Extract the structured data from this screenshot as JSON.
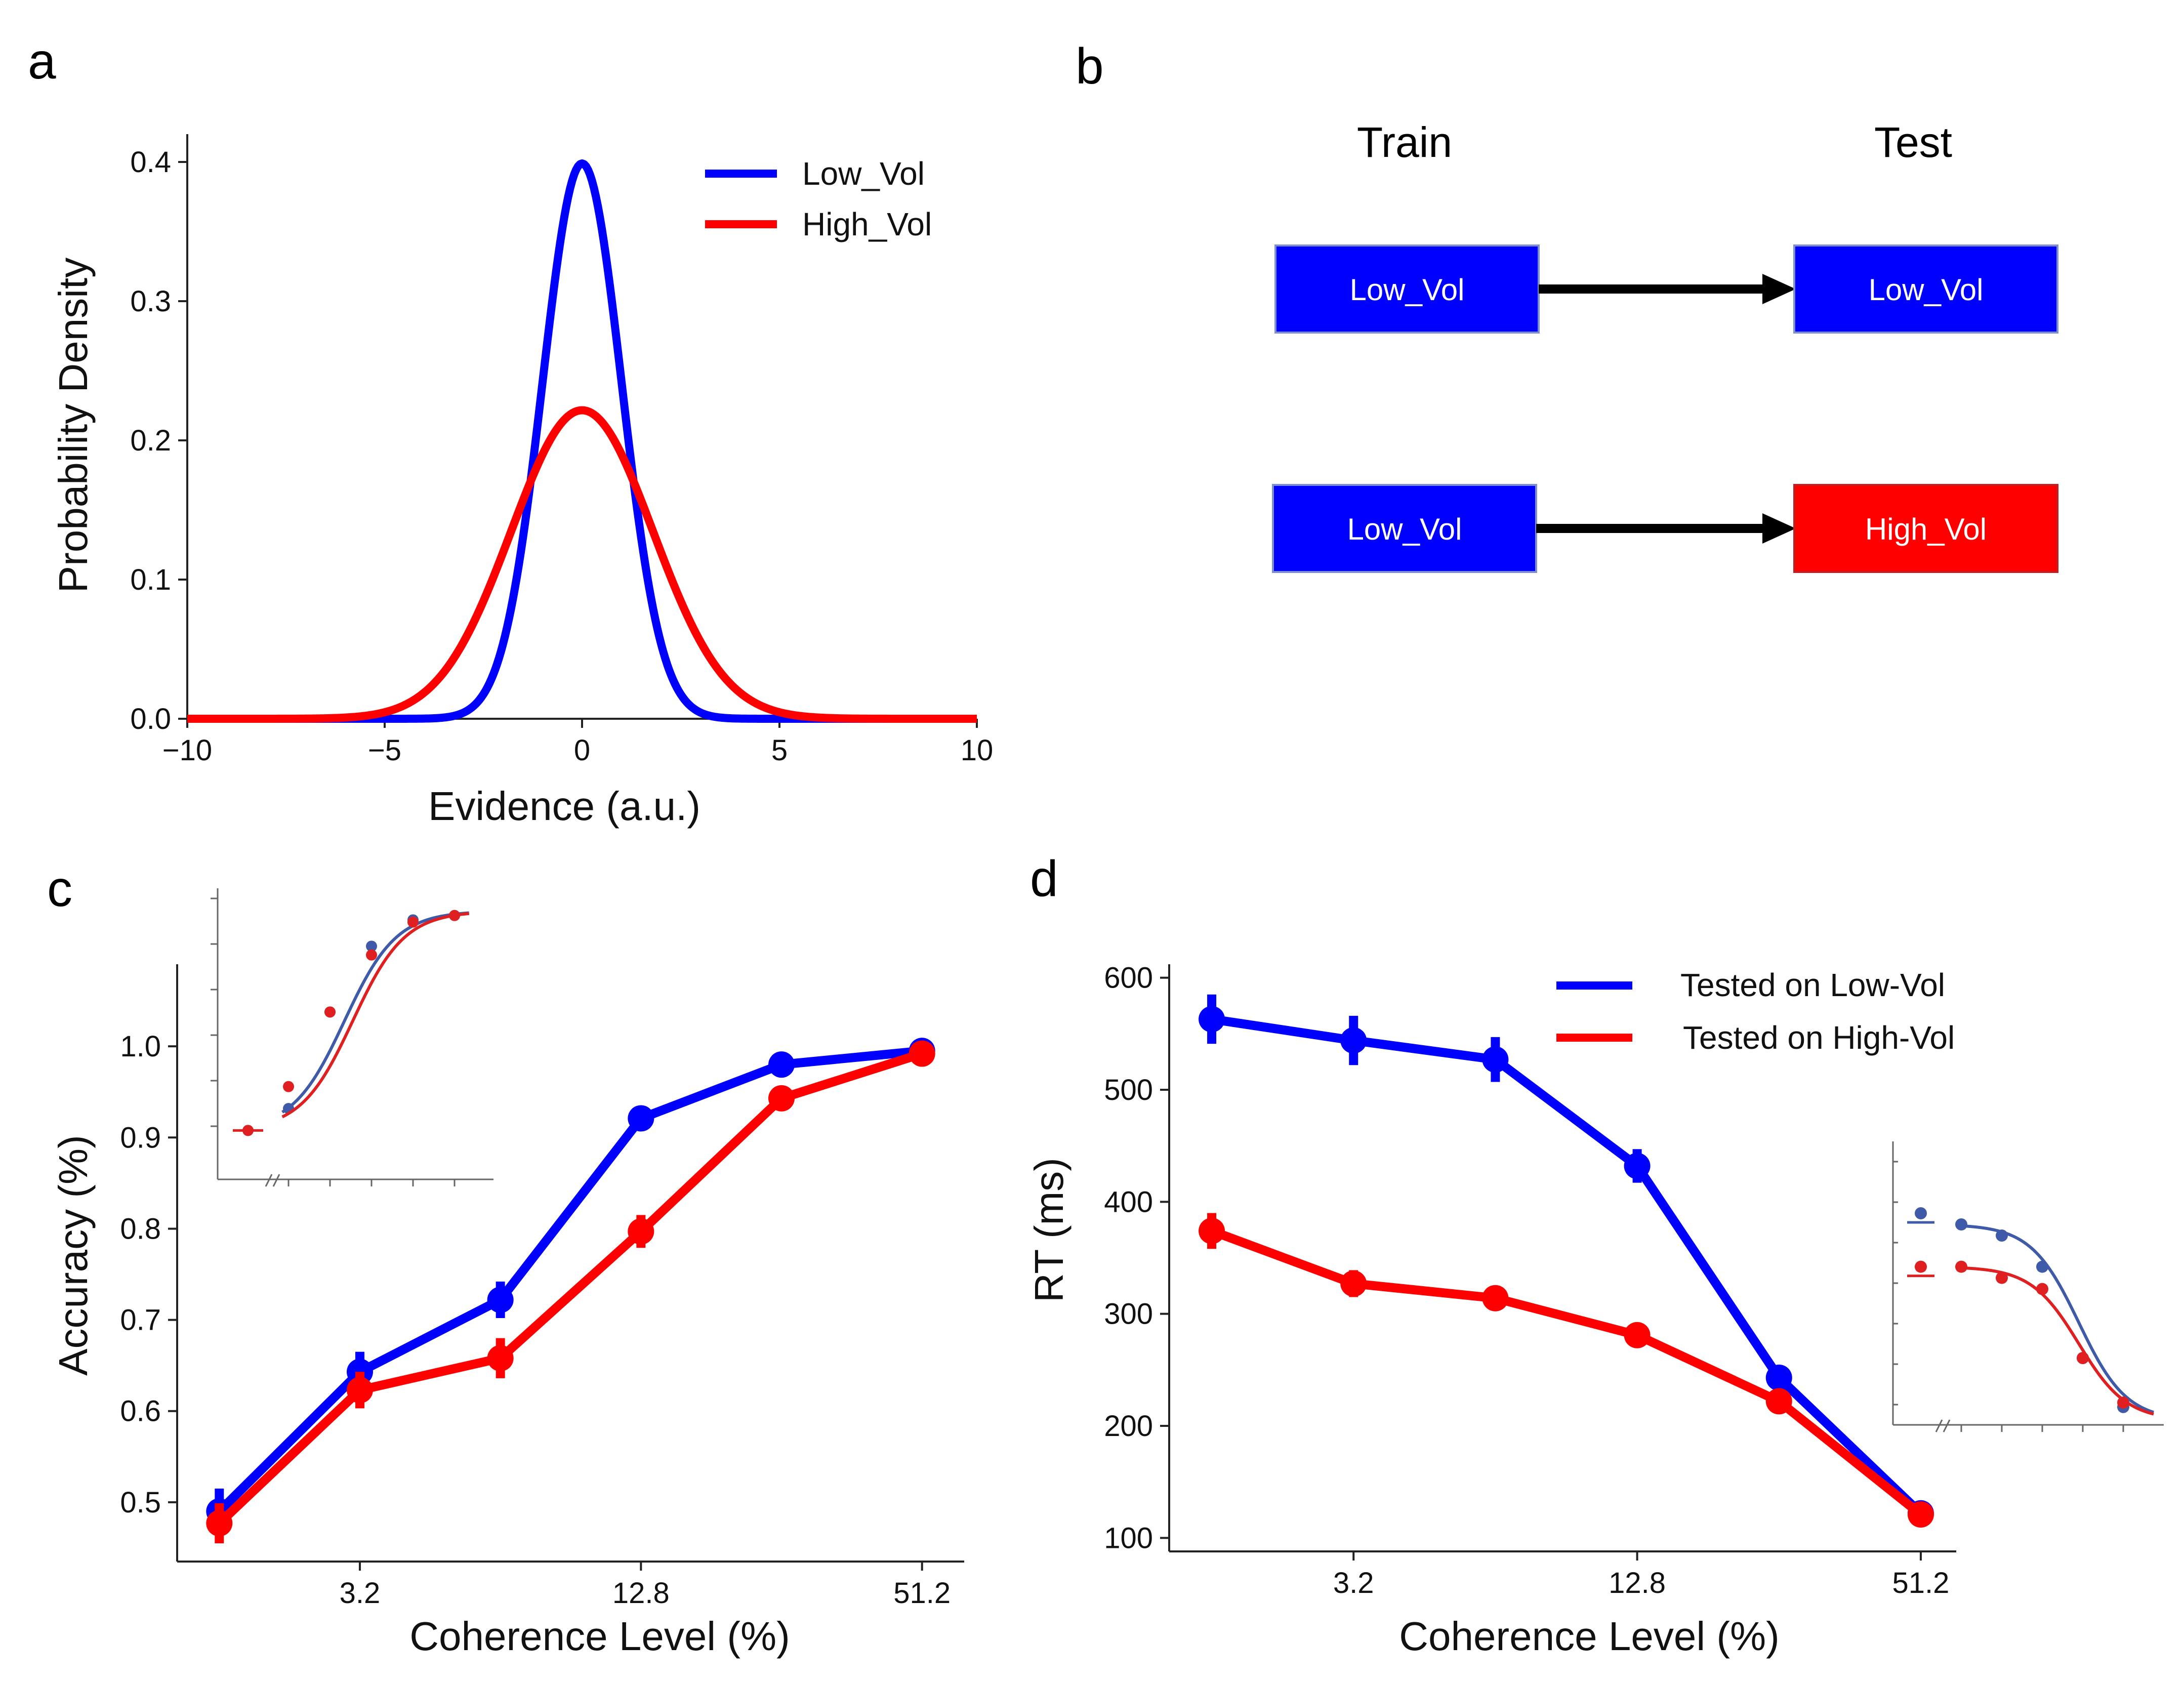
{
  "panels": {
    "a": {
      "letter": "a",
      "chart_data": {
        "type": "line",
        "title": "",
        "xlabel": "Evidence (a.u.)",
        "ylabel": "Probability Density",
        "xlim": [
          -10,
          10
        ],
        "ylim": [
          0,
          0.42
        ],
        "xticks": [
          -10,
          -5,
          0,
          5,
          10
        ],
        "xtick_labels": [
          "−10",
          "−5",
          "0",
          "5",
          "10"
        ],
        "yticks": [
          0.0,
          0.1,
          0.2,
          0.3,
          0.4
        ],
        "ytick_labels": [
          "0.0",
          "0.1",
          "0.2",
          "0.3",
          "0.4"
        ],
        "legend_position": "top-right",
        "series": [
          {
            "name": "Low_Vol",
            "color": "#0000ff",
            "distribution": "normal",
            "mean": 0,
            "sd": 1.0
          },
          {
            "name": "High_Vol",
            "color": "#ff0000",
            "distribution": "normal",
            "mean": 0,
            "sd": 1.8
          }
        ]
      }
    },
    "b": {
      "letter": "b",
      "headers": {
        "train": "Train",
        "test": "Test"
      },
      "rows": [
        {
          "train_label": "Low_Vol",
          "train_color": "#0000ff",
          "test_label": "Low_Vol",
          "test_color": "#0000ff"
        },
        {
          "train_label": "Low_Vol",
          "train_color": "#0000ff",
          "test_label": "High_Vol",
          "test_color": "#ff0000"
        }
      ]
    },
    "c": {
      "letter": "c",
      "chart_data": {
        "type": "line",
        "xlabel": "Coherence Level (%)",
        "ylabel": "Accuracy (%)",
        "x": [
          1,
          2,
          3,
          4,
          5,
          6
        ],
        "xlim": [
          0.7,
          6.3
        ],
        "ylim": [
          0.435,
          1.09
        ],
        "xticks": [
          2,
          4,
          6
        ],
        "xtick_labels": [
          "3.2",
          "12.8",
          "51.2"
        ],
        "yticks": [
          0.5,
          0.6,
          0.7,
          0.8,
          0.9,
          1.0
        ],
        "ytick_labels": [
          "0.5",
          "0.6",
          "0.7",
          "0.8",
          "0.9",
          "1.0"
        ],
        "series": [
          {
            "name": "Tested on Low-Vol",
            "color": "#0000ff",
            "values": [
              0.49,
              0.643,
              0.722,
              0.921,
              0.98,
              0.995
            ],
            "errors": [
              0.025,
              0.022,
              0.02,
              0.008,
              0.005,
              0.003
            ]
          },
          {
            "name": "Tested on High-Vol",
            "color": "#ff0000",
            "values": [
              0.477,
              0.623,
              0.658,
              0.797,
              0.943,
              0.992
            ],
            "errors": [
              0.022,
              0.02,
              0.022,
              0.018,
              0.008,
              0.004
            ]
          }
        ],
        "inset": {
          "position": "top-left",
          "x": [
            0,
            1,
            2,
            3,
            4,
            5
          ],
          "series": [
            {
              "name": "Tested on Low-Vol",
              "color": "#3f5aa8",
              "points": [
                0.5,
                0.55,
                0.77,
                0.92,
                0.98,
                0.99
              ],
              "fit": {
                "mid": 2.35,
                "k": 1.6
              }
            },
            {
              "name": "Tested on High-Vol",
              "color": "#e02020",
              "points": [
                0.5,
                0.6,
                0.77,
                0.9,
                0.975,
                0.99
              ],
              "fit": {
                "mid": 2.55,
                "k": 1.6
              }
            }
          ]
        }
      }
    },
    "d": {
      "letter": "d",
      "chart_data": {
        "type": "line",
        "xlabel": "Coherence Level (%)",
        "ylabel": "RT (ms)",
        "x": [
          1,
          2,
          3,
          4,
          5,
          6
        ],
        "xlim": [
          0.7,
          6.25
        ],
        "ylim": [
          88,
          612
        ],
        "xticks": [
          2,
          4,
          6
        ],
        "xtick_labels": [
          "3.2",
          "12.8",
          "51.2"
        ],
        "yticks": [
          100,
          200,
          300,
          400,
          500,
          600
        ],
        "ytick_labels": [
          "100",
          "200",
          "300",
          "400",
          "500",
          "600"
        ],
        "legend_position": "top-right",
        "series": [
          {
            "name": "Tested on Low-Vol",
            "color": "#0000ff",
            "values": [
              563,
              544,
              527,
              432,
              243,
              122
            ],
            "errors": [
              22,
              22,
              20,
              15,
              8,
              4
            ]
          },
          {
            "name": "Tested on High-Vol",
            "color": "#ff0000",
            "values": [
              374,
              327,
              314,
              281,
              222,
              121
            ],
            "errors": [
              16,
              12,
              10,
              7,
              6,
              4
            ]
          }
        ],
        "inset": {
          "position": "right",
          "x": [
            0,
            1,
            2,
            3,
            4,
            5
          ],
          "series": [
            {
              "name": "Tested on Low-Vol",
              "color": "#3f5aa8",
              "points": [
                0.95,
                0.9,
                0.85,
                0.71,
                0.3,
                0.08
              ]
            },
            {
              "name": "Tested on High-Vol",
              "color": "#e02020",
              "points": [
                0.71,
                0.71,
                0.66,
                0.61,
                0.3,
                0.1
              ]
            }
          ]
        }
      }
    }
  }
}
